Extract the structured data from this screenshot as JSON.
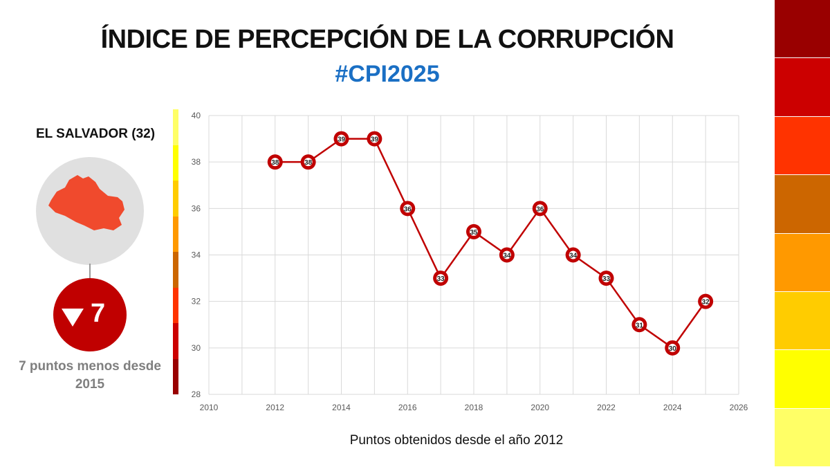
{
  "header": {
    "title": "ÍNDICE DE PERCEPCIÓN DE LA CORRUPCIÓN",
    "hashtag": "#CPI2025"
  },
  "country_card": {
    "name": "EL SALVADOR (32)",
    "change_value": "7",
    "change_direction": "down",
    "change_note": "7 puntos menos desde 2015",
    "map_icon": "el-salvador-map-icon",
    "map_color": "#f04a2d",
    "badge_color": "#c00000"
  },
  "caption": "Puntos obtenidos desde el año 2012",
  "scale_colors": [
    "#ffff66",
    "#ffff00",
    "#ffcc00",
    "#ff9900",
    "#cc6600",
    "#ff3300",
    "#cc0000",
    "#990000"
  ],
  "side_scale_colors": [
    "#990000",
    "#cc0000",
    "#ff3300",
    "#cc6600",
    "#ff9900",
    "#ffcc00",
    "#ffff00",
    "#ffff66"
  ],
  "chart_data": {
    "type": "line",
    "x": [
      2012,
      2013,
      2014,
      2015,
      2016,
      2017,
      2018,
      2019,
      2020,
      2021,
      2022,
      2023,
      2024,
      2025
    ],
    "series": [
      {
        "values": [
          38,
          38,
          39,
          39,
          36,
          33,
          35,
          34,
          36,
          34,
          33,
          31,
          30,
          32
        ],
        "color": "#c00000"
      }
    ],
    "xlim": [
      2010,
      2026
    ],
    "ylim": [
      28,
      40
    ],
    "x_ticks": [
      2010,
      2012,
      2014,
      2016,
      2018,
      2020,
      2022,
      2024,
      2026
    ],
    "y_ticks": [
      28,
      30,
      32,
      34,
      36,
      38,
      40
    ],
    "grid": true
  }
}
